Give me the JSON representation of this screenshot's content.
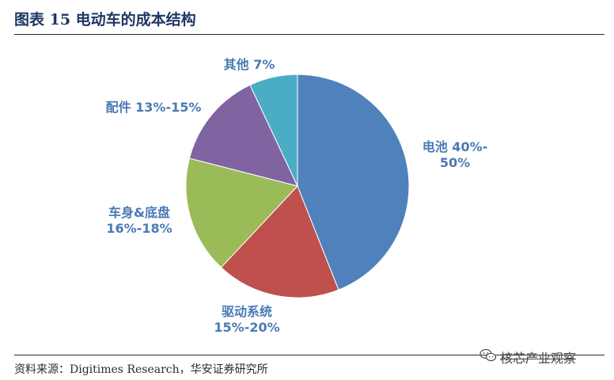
{
  "header": {
    "title": "图表 15  电动车的成本结构"
  },
  "footer": {
    "source": "资料来源：Digitimes Research，华安证券研究所"
  },
  "watermark": {
    "text": "核芯产业观察",
    "icon": "wechat-icon"
  },
  "chart_data": {
    "type": "pie",
    "title": "",
    "slices": [
      {
        "label_lines": [
          "电池 40%-",
          "50%"
        ],
        "value": 44,
        "color": "#4f81bd"
      },
      {
        "label_lines": [
          "驱动系统",
          "15%-20%"
        ],
        "value": 18,
        "color": "#c0504d"
      },
      {
        "label_lines": [
          "车身&底盘",
          "16%-18%"
        ],
        "value": 17,
        "color": "#9bbb59"
      },
      {
        "label_lines": [
          "配件 13%-15%"
        ],
        "value": 14,
        "color": "#8064a2"
      },
      {
        "label_lines": [
          "其他 7%"
        ],
        "value": 7,
        "color": "#4bacc6"
      }
    ],
    "start_angle_deg": 0,
    "direction": "clockwise",
    "label_color": "#4a7ab5"
  }
}
